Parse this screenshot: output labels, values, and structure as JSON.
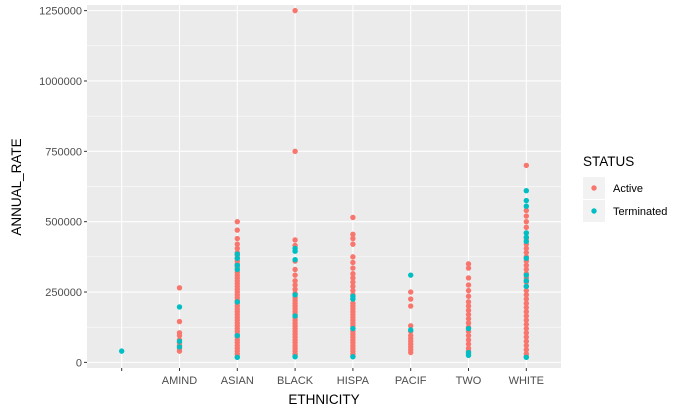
{
  "chart_data": {
    "type": "scatter",
    "xlabel": "ETHNICITY",
    "ylabel": "ANNUAL_RATE",
    "categories": [
      "",
      "AMIND",
      "ASIAN",
      "BLACK",
      "HISPA",
      "PACIF",
      "TWO",
      "WHITE"
    ],
    "ylim": [
      -20000,
      1270000
    ],
    "yticks": [
      0,
      250000,
      500000,
      750000,
      1000000,
      1250000
    ],
    "ytick_labels": [
      "0",
      "250000",
      "500000",
      "750000",
      "1000000",
      "1250000"
    ],
    "grid": true,
    "legend": {
      "title": "STATUS",
      "position": "right"
    },
    "series": [
      {
        "name": "Active",
        "color": "#F8766D",
        "points": [
          [
            "AMIND",
            265000
          ],
          [
            "AMIND",
            145000
          ],
          [
            "AMIND",
            105000
          ],
          [
            "AMIND",
            95000
          ],
          [
            "AMIND",
            80000
          ],
          [
            "AMIND",
            70000
          ],
          [
            "AMIND",
            60000
          ],
          [
            "AMIND",
            50000
          ],
          [
            "AMIND",
            40000
          ],
          [
            "ASIAN",
            500000
          ],
          [
            "ASIAN",
            470000
          ],
          [
            "ASIAN",
            440000
          ],
          [
            "ASIAN",
            420000
          ],
          [
            "ASIAN",
            405000
          ],
          [
            "ASIAN",
            390000
          ],
          [
            "ASIAN",
            380000
          ],
          [
            "ASIAN",
            370000
          ],
          [
            "ASIAN",
            360000
          ],
          [
            "ASIAN",
            350000
          ],
          [
            "ASIAN",
            340000
          ],
          [
            "ASIAN",
            330000
          ],
          [
            "ASIAN",
            320000
          ],
          [
            "ASIAN",
            310000
          ],
          [
            "ASIAN",
            300000
          ],
          [
            "ASIAN",
            290000
          ],
          [
            "ASIAN",
            280000
          ],
          [
            "ASIAN",
            270000
          ],
          [
            "ASIAN",
            260000
          ],
          [
            "ASIAN",
            250000
          ],
          [
            "ASIAN",
            240000
          ],
          [
            "ASIAN",
            230000
          ],
          [
            "ASIAN",
            220000
          ],
          [
            "ASIAN",
            210000
          ],
          [
            "ASIAN",
            200000
          ],
          [
            "ASIAN",
            190000
          ],
          [
            "ASIAN",
            180000
          ],
          [
            "ASIAN",
            170000
          ],
          [
            "ASIAN",
            160000
          ],
          [
            "ASIAN",
            150000
          ],
          [
            "ASIAN",
            140000
          ],
          [
            "ASIAN",
            130000
          ],
          [
            "ASIAN",
            120000
          ],
          [
            "ASIAN",
            110000
          ],
          [
            "ASIAN",
            100000
          ],
          [
            "ASIAN",
            90000
          ],
          [
            "ASIAN",
            80000
          ],
          [
            "ASIAN",
            70000
          ],
          [
            "ASIAN",
            60000
          ],
          [
            "ASIAN",
            50000
          ],
          [
            "ASIAN",
            40000
          ],
          [
            "ASIAN",
            30000
          ],
          [
            "ASIAN",
            20000
          ],
          [
            "BLACK",
            1250000
          ],
          [
            "BLACK",
            750000
          ],
          [
            "BLACK",
            435000
          ],
          [
            "BLACK",
            415000
          ],
          [
            "BLACK",
            360000
          ],
          [
            "BLACK",
            330000
          ],
          [
            "BLACK",
            310000
          ],
          [
            "BLACK",
            290000
          ],
          [
            "BLACK",
            275000
          ],
          [
            "BLACK",
            260000
          ],
          [
            "BLACK",
            245000
          ],
          [
            "BLACK",
            230000
          ],
          [
            "BLACK",
            220000
          ],
          [
            "BLACK",
            210000
          ],
          [
            "BLACK",
            200000
          ],
          [
            "BLACK",
            190000
          ],
          [
            "BLACK",
            180000
          ],
          [
            "BLACK",
            170000
          ],
          [
            "BLACK",
            160000
          ],
          [
            "BLACK",
            150000
          ],
          [
            "BLACK",
            140000
          ],
          [
            "BLACK",
            130000
          ],
          [
            "BLACK",
            120000
          ],
          [
            "BLACK",
            110000
          ],
          [
            "BLACK",
            100000
          ],
          [
            "BLACK",
            90000
          ],
          [
            "BLACK",
            80000
          ],
          [
            "BLACK",
            70000
          ],
          [
            "BLACK",
            60000
          ],
          [
            "BLACK",
            50000
          ],
          [
            "BLACK",
            40000
          ],
          [
            "BLACK",
            30000
          ],
          [
            "BLACK",
            25000
          ],
          [
            "HISPA",
            515000
          ],
          [
            "HISPA",
            455000
          ],
          [
            "HISPA",
            440000
          ],
          [
            "HISPA",
            420000
          ],
          [
            "HISPA",
            375000
          ],
          [
            "HISPA",
            355000
          ],
          [
            "HISPA",
            335000
          ],
          [
            "HISPA",
            315000
          ],
          [
            "HISPA",
            300000
          ],
          [
            "HISPA",
            285000
          ],
          [
            "HISPA",
            270000
          ],
          [
            "HISPA",
            255000
          ],
          [
            "HISPA",
            240000
          ],
          [
            "HISPA",
            225000
          ],
          [
            "HISPA",
            210000
          ],
          [
            "HISPA",
            200000
          ],
          [
            "HISPA",
            190000
          ],
          [
            "HISPA",
            180000
          ],
          [
            "HISPA",
            170000
          ],
          [
            "HISPA",
            160000
          ],
          [
            "HISPA",
            150000
          ],
          [
            "HISPA",
            140000
          ],
          [
            "HISPA",
            130000
          ],
          [
            "HISPA",
            120000
          ],
          [
            "HISPA",
            110000
          ],
          [
            "HISPA",
            100000
          ],
          [
            "HISPA",
            90000
          ],
          [
            "HISPA",
            80000
          ],
          [
            "HISPA",
            70000
          ],
          [
            "HISPA",
            60000
          ],
          [
            "HISPA",
            50000
          ],
          [
            "HISPA",
            40000
          ],
          [
            "HISPA",
            30000
          ],
          [
            "HISPA",
            22000
          ],
          [
            "PACIF",
            250000
          ],
          [
            "PACIF",
            225000
          ],
          [
            "PACIF",
            200000
          ],
          [
            "PACIF",
            130000
          ],
          [
            "PACIF",
            110000
          ],
          [
            "PACIF",
            95000
          ],
          [
            "PACIF",
            85000
          ],
          [
            "PACIF",
            75000
          ],
          [
            "PACIF",
            65000
          ],
          [
            "PACIF",
            55000
          ],
          [
            "PACIF",
            45000
          ],
          [
            "PACIF",
            35000
          ],
          [
            "TWO",
            350000
          ],
          [
            "TWO",
            335000
          ],
          [
            "TWO",
            300000
          ],
          [
            "TWO",
            275000
          ],
          [
            "TWO",
            255000
          ],
          [
            "TWO",
            235000
          ],
          [
            "TWO",
            215000
          ],
          [
            "TWO",
            200000
          ],
          [
            "TWO",
            185000
          ],
          [
            "TWO",
            170000
          ],
          [
            "TWO",
            155000
          ],
          [
            "TWO",
            140000
          ],
          [
            "TWO",
            125000
          ],
          [
            "TWO",
            110000
          ],
          [
            "TWO",
            95000
          ],
          [
            "TWO",
            80000
          ],
          [
            "TWO",
            65000
          ],
          [
            "TWO",
            50000
          ],
          [
            "TWO",
            40000
          ],
          [
            "TWO",
            30000
          ],
          [
            "WHITE",
            700000
          ],
          [
            "WHITE",
            540000
          ],
          [
            "WHITE",
            520000
          ],
          [
            "WHITE",
            500000
          ],
          [
            "WHITE",
            480000
          ],
          [
            "WHITE",
            460000
          ],
          [
            "WHITE",
            440000
          ],
          [
            "WHITE",
            420000
          ],
          [
            "WHITE",
            405000
          ],
          [
            "WHITE",
            390000
          ],
          [
            "WHITE",
            375000
          ],
          [
            "WHITE",
            360000
          ],
          [
            "WHITE",
            345000
          ],
          [
            "WHITE",
            330000
          ],
          [
            "WHITE",
            315000
          ],
          [
            "WHITE",
            300000
          ],
          [
            "WHITE",
            285000
          ],
          [
            "WHITE",
            270000
          ],
          [
            "WHITE",
            255000
          ],
          [
            "WHITE",
            240000
          ],
          [
            "WHITE",
            225000
          ],
          [
            "WHITE",
            210000
          ],
          [
            "WHITE",
            195000
          ],
          [
            "WHITE",
            180000
          ],
          [
            "WHITE",
            165000
          ],
          [
            "WHITE",
            150000
          ],
          [
            "WHITE",
            135000
          ],
          [
            "WHITE",
            120000
          ],
          [
            "WHITE",
            105000
          ],
          [
            "WHITE",
            90000
          ],
          [
            "WHITE",
            75000
          ],
          [
            "WHITE",
            60000
          ],
          [
            "WHITE",
            45000
          ],
          [
            "WHITE",
            30000
          ],
          [
            "WHITE",
            20000
          ]
        ]
      },
      {
        "name": "Terminated",
        "color": "#00BFC4",
        "points": [
          [
            "",
            40000
          ],
          [
            "AMIND",
            197000
          ],
          [
            "AMIND",
            75000
          ],
          [
            "AMIND",
            55000
          ],
          [
            "ASIAN",
            385000
          ],
          [
            "ASIAN",
            370000
          ],
          [
            "ASIAN",
            345000
          ],
          [
            "ASIAN",
            330000
          ],
          [
            "ASIAN",
            215000
          ],
          [
            "ASIAN",
            95000
          ],
          [
            "ASIAN",
            18000
          ],
          [
            "BLACK",
            405000
          ],
          [
            "BLACK",
            395000
          ],
          [
            "BLACK",
            365000
          ],
          [
            "BLACK",
            240000
          ],
          [
            "BLACK",
            165000
          ],
          [
            "BLACK",
            20000
          ],
          [
            "HISPA",
            235000
          ],
          [
            "HISPA",
            225000
          ],
          [
            "HISPA",
            120000
          ],
          [
            "HISPA",
            20000
          ],
          [
            "PACIF",
            310000
          ],
          [
            "PACIF",
            115000
          ],
          [
            "TWO",
            120000
          ],
          [
            "TWO",
            35000
          ],
          [
            "TWO",
            25000
          ],
          [
            "WHITE",
            610000
          ],
          [
            "WHITE",
            575000
          ],
          [
            "WHITE",
            555000
          ],
          [
            "WHITE",
            460000
          ],
          [
            "WHITE",
            445000
          ],
          [
            "WHITE",
            430000
          ],
          [
            "WHITE",
            370000
          ],
          [
            "WHITE",
            310000
          ],
          [
            "WHITE",
            290000
          ],
          [
            "WHITE",
            270000
          ],
          [
            "WHITE",
            18000
          ]
        ]
      }
    ]
  }
}
